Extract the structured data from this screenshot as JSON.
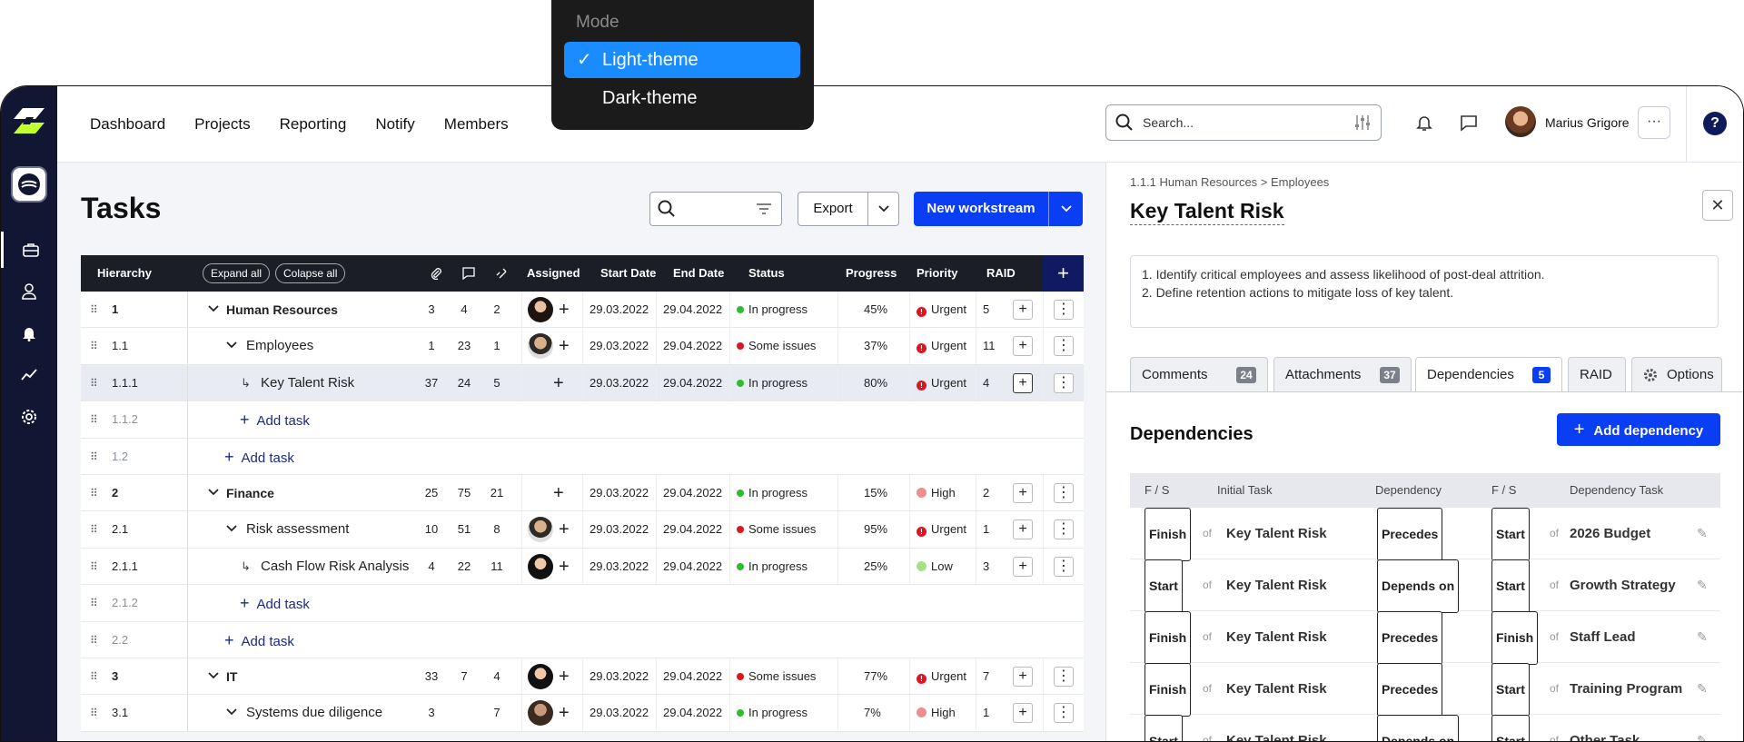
{
  "mode_menu": {
    "header": "Mode",
    "options": [
      {
        "label": "Light-theme",
        "selected": true
      },
      {
        "label": "Dark-theme",
        "selected": false
      }
    ]
  },
  "nav": {
    "items": [
      "Dashboard",
      "Projects",
      "Reporting",
      "Notify",
      "Members"
    ]
  },
  "search": {
    "placeholder": "Search..."
  },
  "user": {
    "name": "Marius Grigore"
  },
  "page": {
    "title": "Tasks",
    "export_label": "Export",
    "new_workstream_label": "New workstream"
  },
  "grid": {
    "headers": {
      "hierarchy": "Hierarchy",
      "expand_all": "Expand all",
      "collapse_all": "Colapse all",
      "assigned": "Assigned",
      "start_date": "Start Date",
      "end_date": "End Date",
      "status": "Status",
      "progress": "Progress",
      "priority": "Priority",
      "raid": "RAID"
    },
    "rows": [
      {
        "num": "1",
        "level": 0,
        "name": "Human Resources",
        "att": "3",
        "com": "4",
        "link": "2",
        "start": "29.03.2022",
        "end": "29.04.2022",
        "status": "In progress",
        "progress": "45%",
        "priority": "Urgent",
        "raid": "5"
      },
      {
        "num": "1.1",
        "level": 1,
        "name": "Employees",
        "att": "1",
        "com": "23",
        "link": "1",
        "start": "29.03.2022",
        "end": "29.04.2022",
        "status": "Some issues",
        "progress": "37%",
        "priority": "Urgent",
        "raid": "11"
      },
      {
        "num": "1.1.1",
        "level": 2,
        "name": "Key Talent Risk",
        "att": "37",
        "com": "24",
        "link": "5",
        "start": "29.03.2022",
        "end": "29.04.2022",
        "status": "In progress",
        "progress": "80%",
        "priority": "Urgent",
        "raid": "4"
      },
      {
        "num": "1.1.2",
        "add": "Add task"
      },
      {
        "num": "1.2",
        "add": "Add task"
      },
      {
        "num": "2",
        "level": 0,
        "name": "Finance",
        "att": "25",
        "com": "75",
        "link": "21",
        "start": "29.03.2022",
        "end": "29.04.2022",
        "status": "In progress",
        "progress": "15%",
        "priority": "High",
        "raid": "2"
      },
      {
        "num": "2.1",
        "level": 1,
        "name": "Risk assessment",
        "att": "10",
        "com": "51",
        "link": "8",
        "start": "29.03.2022",
        "end": "29.04.2022",
        "status": "Some issues",
        "progress": "95%",
        "priority": "Urgent",
        "raid": "1"
      },
      {
        "num": "2.1.1",
        "level": 2,
        "name": "Cash Flow Risk Analysis",
        "att": "4",
        "com": "22",
        "link": "11",
        "start": "29.03.2022",
        "end": "29.04.2022",
        "status": "In progress",
        "progress": "25%",
        "priority": "Low",
        "raid": "3"
      },
      {
        "num": "2.1.2",
        "add": "Add task"
      },
      {
        "num": "2.2",
        "add": "Add task"
      },
      {
        "num": "3",
        "level": 0,
        "name": "IT",
        "att": "33",
        "com": "7",
        "link": "4",
        "start": "29.03.2022",
        "end": "29.04.2022",
        "status": "Some issues",
        "progress": "77%",
        "priority": "Urgent",
        "raid": "7"
      },
      {
        "num": "3.1",
        "level": 1,
        "name": "Systems due diligence",
        "att": "3",
        "com": "",
        "link": "7",
        "start": "29.03.2022",
        "end": "29.04.2022",
        "status": "In progress",
        "progress": "7%",
        "priority": "High",
        "raid": "1"
      }
    ]
  },
  "panel": {
    "breadcrumb": "1.1.1  Human Resources > Employees",
    "title": "Key Talent Risk",
    "description_line1": "1. Identify critical employees and assess likelihood of post-deal attrition.",
    "description_line2": "2. Define retention actions to mitigate loss of key talent.",
    "tabs": [
      {
        "label": "Comments",
        "badge": "24"
      },
      {
        "label": "Attachments",
        "badge": "37"
      },
      {
        "label": "Dependencies",
        "badge": "5"
      },
      {
        "label": "RAID",
        "badge": ""
      },
      {
        "label": "Options",
        "badge": ""
      }
    ],
    "deps_heading": "Dependencies",
    "add_dependency": "Add dependency",
    "dep_headers": [
      "F / S",
      "Initial Task",
      "Dependency",
      "F / S",
      "Dependency Task"
    ],
    "deps": [
      {
        "fs1": "Finish",
        "initial": "Key Talent Risk",
        "dep": "Precedes",
        "fs2": "Start",
        "task": "2026 Budget"
      },
      {
        "fs1": "Start",
        "initial": "Key Talent Risk",
        "dep": "Depends on",
        "fs2": "Start",
        "task": "Growth Strategy"
      },
      {
        "fs1": "Finish",
        "initial": "Key Talent Risk",
        "dep": "Precedes",
        "fs2": "Finish",
        "task": "Staff Lead"
      },
      {
        "fs1": "Finish",
        "initial": "Key Talent Risk",
        "dep": "Precedes",
        "fs2": "Start",
        "task": "Training Program"
      },
      {
        "fs1": "Start",
        "initial": "Key Talent Risk",
        "dep": "Depends on",
        "fs2": "Start",
        "task": "Other Task"
      }
    ],
    "of_word": "of"
  },
  "colors": {
    "accent": "#0a3ef5",
    "rail": "#111733",
    "in_progress": "#2ebd2e",
    "some_issues": "#e0141e",
    "urgent": "#e0141e",
    "high": "#f08c8c",
    "low": "#a8e08a"
  }
}
